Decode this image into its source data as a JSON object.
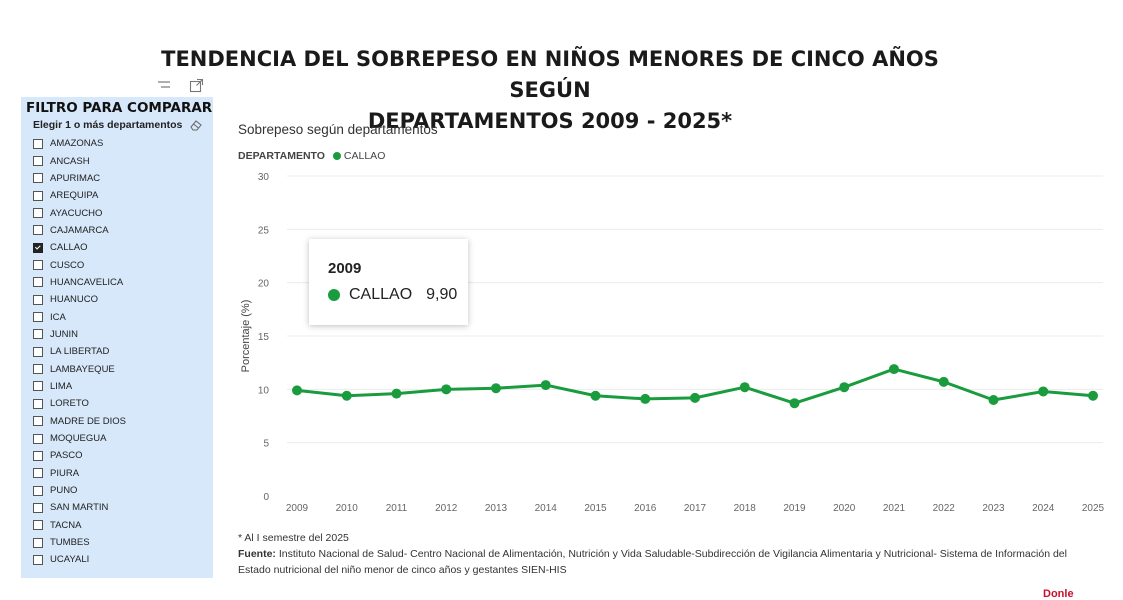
{
  "page": {
    "title_line1": "TENDENCIA DEL SOBREPESO EN NIÑOS MENORES DE CINCO AÑOS SEGÚN",
    "title_line2": "DEPARTAMENTOS 2009 - 2025*"
  },
  "filter": {
    "title": "FILTRO PARA COMPARAR",
    "subtitle": "Elegir 1 o más departamentos",
    "items": [
      {
        "label": "AMAZONAS",
        "checked": false
      },
      {
        "label": "ANCASH",
        "checked": false
      },
      {
        "label": "APURIMAC",
        "checked": false
      },
      {
        "label": "AREQUIPA",
        "checked": false
      },
      {
        "label": "AYACUCHO",
        "checked": false
      },
      {
        "label": "CAJAMARCA",
        "checked": false
      },
      {
        "label": "CALLAO",
        "checked": true
      },
      {
        "label": "CUSCO",
        "checked": false
      },
      {
        "label": "HUANCAVELICA",
        "checked": false
      },
      {
        "label": "HUANUCO",
        "checked": false
      },
      {
        "label": "ICA",
        "checked": false
      },
      {
        "label": "JUNIN",
        "checked": false
      },
      {
        "label": "LA LIBERTAD",
        "checked": false
      },
      {
        "label": "LAMBAYEQUE",
        "checked": false
      },
      {
        "label": "LIMA",
        "checked": false
      },
      {
        "label": "LORETO",
        "checked": false
      },
      {
        "label": "MADRE DE DIOS",
        "checked": false
      },
      {
        "label": "MOQUEGUA",
        "checked": false
      },
      {
        "label": "PASCO",
        "checked": false
      },
      {
        "label": "PIURA",
        "checked": false
      },
      {
        "label": "PUNO",
        "checked": false
      },
      {
        "label": "SAN MARTIN",
        "checked": false
      },
      {
        "label": "TACNA",
        "checked": false
      },
      {
        "label": "TUMBES",
        "checked": false
      },
      {
        "label": "UCAYALI",
        "checked": false
      }
    ]
  },
  "chart_data": {
    "type": "line",
    "title": "Sobrepeso según departamentos",
    "legend_title": "DEPARTAMENTO",
    "ylabel": "Porcentaje (%)",
    "xlabel": "",
    "ylim": [
      0,
      30
    ],
    "yticks": [
      0,
      5,
      10,
      15,
      20,
      25,
      30
    ],
    "x": [
      "2009",
      "2010",
      "2011",
      "2012",
      "2013",
      "2014",
      "2015",
      "2016",
      "2017",
      "2018",
      "2019",
      "2020",
      "2021",
      "2022",
      "2023",
      "2024",
      "2025"
    ],
    "series": [
      {
        "name": "CALLAO",
        "color": "#1a9c3e",
        "values": [
          9.9,
          9.4,
          9.6,
          10.0,
          10.1,
          10.4,
          9.4,
          9.1,
          9.2,
          10.2,
          8.7,
          10.2,
          11.9,
          10.7,
          9.0,
          9.8,
          9.4
        ]
      }
    ],
    "tooltip": {
      "year": "2009",
      "series": "CALLAO",
      "value": "9,90"
    }
  },
  "notes": {
    "footnote": "* Al I semestre del 2025",
    "source_label": "Fuente:",
    "source_text": " Instituto Nacional de Salud- Centro Nacional de Alimentación, Nutrición y Vida Saludable-Subdirección de Vigilancia Alimentaria y Nutricional- Sistema de Información del Estado nutricional del niño menor de cinco años y gestantes SIEN-HIS"
  },
  "icons": {
    "menu": "menu-lines-icon",
    "expand": "focus-mode-icon",
    "eraser": "eraser-icon"
  }
}
